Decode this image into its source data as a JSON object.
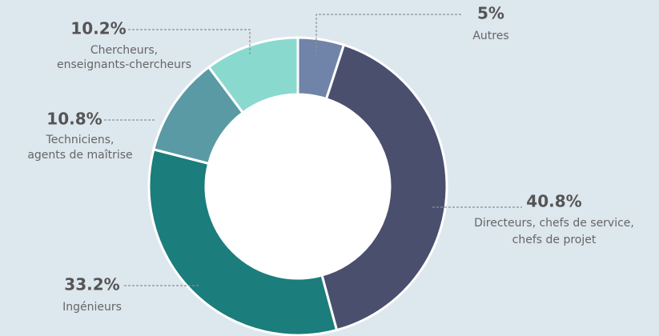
{
  "chart_data": {
    "type": "donut",
    "categories": [
      [
        "Autres"
      ],
      [
        "Directeurs, chefs de service,",
        "chefs de projet"
      ],
      [
        "Ingénieurs"
      ],
      [
        "Techniciens,",
        "agents de maîtrise"
      ],
      [
        "Chercheurs,",
        "enseignants-chercheurs"
      ]
    ],
    "values": [
      5,
      40.8,
      33.2,
      10.8,
      10.2
    ],
    "value_labels": [
      "5%",
      "40.8%",
      "33.2%",
      "10.8%",
      "10.2%"
    ],
    "colors": [
      "#7083a8",
      "#4b4f6e",
      "#1b7d7c",
      "#5a9aa5",
      "#8ad9cf"
    ]
  }
}
